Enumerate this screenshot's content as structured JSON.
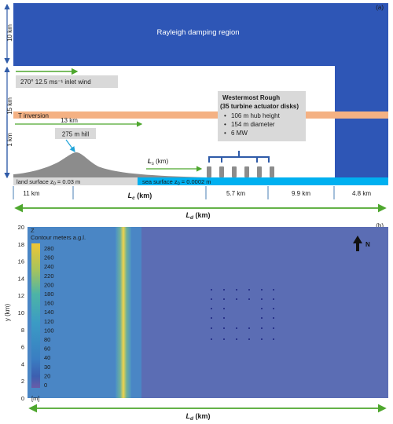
{
  "panel_a": {
    "panel_label": "(a)",
    "damping_label": "Rayleigh damping region",
    "height_label_top": "10 km",
    "height_label_mid": "15 km",
    "height_label_low": "1 km",
    "inlet_wind": "270° 12.5 ms⁻¹ inlet wind",
    "inversion_label": "T inversion",
    "dist_13km": "13 km",
    "hill_label": "275 m hill",
    "ls_label": "L",
    "ls_sub": "s",
    "ls_unit": " (km)",
    "farm_title_1": "Westermost Rough",
    "farm_title_2": "(35 turbine actuator disks)",
    "farm_bullets": [
      "106 m hub height",
      "154 m diameter",
      "6 MW"
    ],
    "land_surface_pre": "land surface z",
    "land_surface_sub": "0",
    "land_surface_val": " = 0.03 m",
    "sea_surface_pre": "sea surface z",
    "sea_surface_sub": "0",
    "sea_surface_val": " = 0.0002 m",
    "bottom_dims": [
      "11 km",
      "5.7 km",
      "9.9 km",
      "4.8 km"
    ],
    "lc_label": "L",
    "lc_sub": "c",
    "lc_unit": " (km)",
    "ld_label": "L",
    "ld_sub": "d",
    "ld_unit": " (km)"
  },
  "panel_b": {
    "panel_label": "(b)",
    "y_axis_label": "y (km)",
    "y_ticks": [
      "0",
      "2",
      "4",
      "6",
      "8",
      "10",
      "12",
      "14",
      "16",
      "18",
      "20"
    ],
    "legend_var": "Z",
    "legend_title": "Contour meters a.g.l.",
    "legend_values": [
      "280",
      "260",
      "240",
      "220",
      "200",
      "180",
      "160",
      "140",
      "120",
      "100",
      "80",
      "60",
      "40",
      "30",
      "20",
      "0"
    ],
    "legend_unit": "[m]",
    "north_label": "N",
    "ld_label": "L",
    "ld_sub": "d",
    "ld_unit": " (km)"
  },
  "colors": {
    "damping": "#2e56b6",
    "inversion": "#f4b183",
    "sea": "#00b0f0",
    "hill": "#8c8c8c",
    "green_arrow": "#4ea72e",
    "blue_brace": "#2f5ba8",
    "map_land": "#4a86c5",
    "map_sea": "#5b6db4",
    "ridge": "#e8c84a"
  }
}
